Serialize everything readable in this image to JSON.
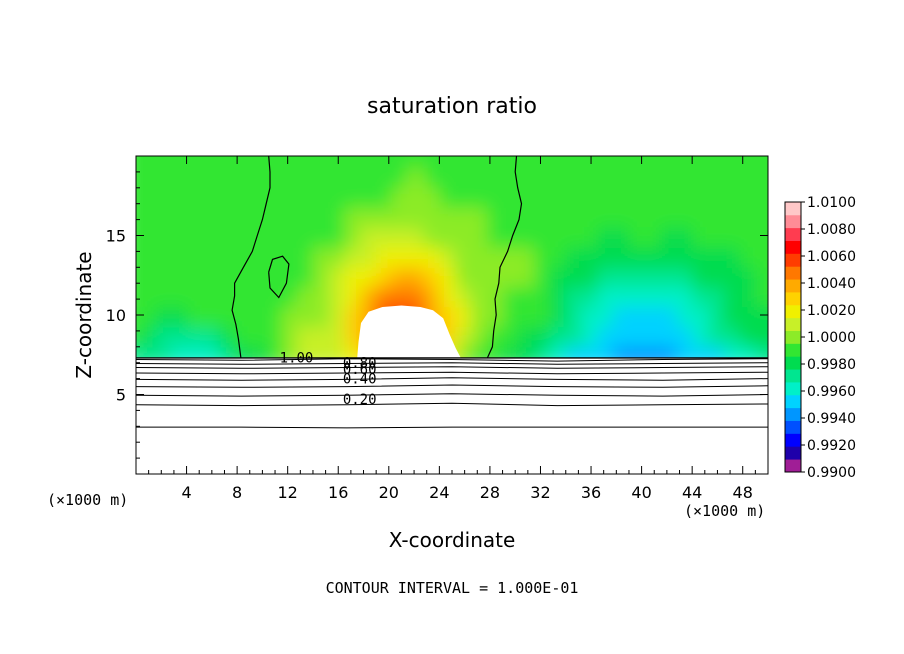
{
  "chart_data": {
    "type": "heatmap",
    "title": "saturation ratio",
    "xlabel": "X-coordinate",
    "ylabel": "Z-coordinate",
    "x_unit_label": "(×1000 m)",
    "x_unit_label_right": "(×1000 m)",
    "xlim": [
      0,
      50
    ],
    "ylim": [
      0,
      20
    ],
    "x_ticks": [
      4,
      8,
      12,
      16,
      20,
      24,
      28,
      32,
      36,
      40,
      44,
      48
    ],
    "x_tick_labels": [
      "4",
      "8",
      "12",
      "16",
      "20",
      "24",
      "28",
      "32",
      "36",
      "40",
      "44",
      "48"
    ],
    "y_ticks": [
      5,
      10,
      15
    ],
    "y_tick_labels": [
      "5",
      "10",
      "15"
    ],
    "colorbar": {
      "min": 0.99,
      "max": 1.01,
      "step": 0.001,
      "labels": [
        "1.0100",
        "1.0080",
        "1.0060",
        "1.0040",
        "1.0020",
        "1.0000",
        "0.9980",
        "0.9960",
        "0.9940",
        "0.9920",
        "0.9900"
      ],
      "colors": [
        "#a01e96",
        "#1e00aa",
        "#0000ff",
        "#0050ff",
        "#0096ff",
        "#00d2ff",
        "#00f0c8",
        "#00e690",
        "#00dc50",
        "#32e632",
        "#8ceb28",
        "#c8f028",
        "#f0f000",
        "#ffd200",
        "#ffaa00",
        "#ff7800",
        "#ff3c00",
        "#ff0000",
        "#ff3c50",
        "#ff8c96",
        "#ffc8c8"
      ]
    },
    "cloud_base_z": 7.3,
    "contour_labels": [
      {
        "text": "1.00",
        "x": 12.7,
        "z": 7.0
      },
      {
        "text": "0.80",
        "x": 17.7,
        "z": 6.7
      },
      {
        "text": "0.60",
        "x": 17.7,
        "z": 6.3
      },
      {
        "text": "0.40",
        "x": 17.7,
        "z": 5.7
      },
      {
        "text": "0.20",
        "x": 17.7,
        "z": 4.4
      }
    ],
    "contour_levels_below": [
      {
        "z": [
          7.2,
          7.15,
          7.25,
          7.2,
          7.1,
          7.2,
          7.25
        ]
      },
      {
        "z": [
          6.95,
          6.9,
          6.95,
          7.0,
          6.9,
          6.95,
          7.0
        ]
      },
      {
        "z": [
          6.7,
          6.65,
          6.7,
          6.75,
          6.65,
          6.7,
          6.75
        ]
      },
      {
        "z": [
          6.35,
          6.3,
          6.35,
          6.4,
          6.3,
          6.35,
          6.4
        ]
      },
      {
        "z": [
          5.95,
          5.9,
          5.95,
          6.05,
          5.95,
          5.9,
          6.0
        ]
      },
      {
        "z": [
          5.5,
          5.45,
          5.5,
          5.6,
          5.5,
          5.45,
          5.55
        ]
      },
      {
        "z": [
          4.95,
          4.9,
          4.95,
          5.05,
          4.95,
          4.9,
          5.0
        ]
      },
      {
        "z": [
          4.35,
          4.3,
          4.35,
          4.45,
          4.3,
          4.35,
          4.4
        ]
      },
      {
        "z": [
          2.95,
          2.95,
          2.9,
          2.95,
          2.95,
          2.95,
          2.95
        ]
      }
    ],
    "s100_contour_left": [
      [
        8.3,
        7.3
      ],
      [
        8.1,
        8.5
      ],
      [
        7.9,
        9.4
      ],
      [
        7.6,
        10.3
      ],
      [
        7.8,
        11.2
      ],
      [
        7.8,
        12.0
      ],
      [
        8.5,
        13.0
      ],
      [
        9.2,
        14.0
      ],
      [
        9.6,
        15.0
      ],
      [
        10.0,
        16.0
      ],
      [
        10.3,
        17.0
      ],
      [
        10.6,
        18.0
      ],
      [
        10.6,
        19.0
      ],
      [
        10.5,
        20.0
      ]
    ],
    "s100_contour_right": [
      [
        27.8,
        7.3
      ],
      [
        28.2,
        8.0
      ],
      [
        28.3,
        9.0
      ],
      [
        28.5,
        10.0
      ],
      [
        28.4,
        11.0
      ],
      [
        28.7,
        12.0
      ],
      [
        28.8,
        13.0
      ],
      [
        29.4,
        14.0
      ],
      [
        29.8,
        15.0
      ],
      [
        30.3,
        16.0
      ],
      [
        30.5,
        17.0
      ],
      [
        30.2,
        18.0
      ],
      [
        30.0,
        19.0
      ],
      [
        30.1,
        20.0
      ]
    ],
    "s100_contour_island": [
      [
        10.5,
        12.7
      ],
      [
        10.8,
        13.5
      ],
      [
        11.6,
        13.7
      ],
      [
        12.1,
        13.2
      ],
      [
        11.9,
        12.0
      ],
      [
        11.3,
        11.1
      ],
      [
        10.6,
        11.7
      ],
      [
        10.5,
        12.7
      ]
    ],
    "white_region": [
      [
        17.5,
        7.3
      ],
      [
        17.6,
        8.3
      ],
      [
        17.8,
        9.5
      ],
      [
        18.4,
        10.2
      ],
      [
        19.5,
        10.5
      ],
      [
        21.0,
        10.6
      ],
      [
        22.5,
        10.5
      ],
      [
        23.5,
        10.3
      ],
      [
        24.3,
        9.8
      ],
      [
        24.8,
        8.8
      ],
      [
        25.3,
        7.9
      ],
      [
        25.7,
        7.3
      ]
    ],
    "annotation": "CONTOUR INTERVAL = 1.000E-01"
  }
}
